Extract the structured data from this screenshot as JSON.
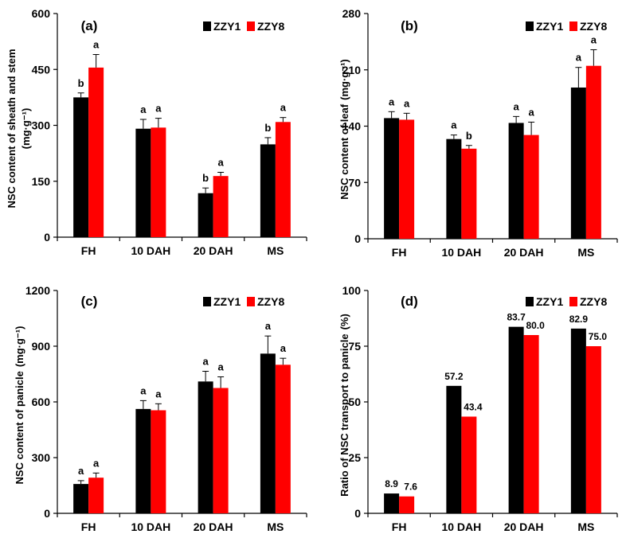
{
  "legend": [
    "ZZY1",
    "ZZY8"
  ],
  "colors": {
    "ZZY1": "#000000",
    "ZZY8": "#ff0000"
  },
  "chart_data": [
    {
      "panel": "(a)",
      "type": "bar",
      "categories": [
        "FH",
        "10 DAH",
        "20 DAH",
        "MS"
      ],
      "ylabel": "NSC content of sheath and stem",
      "ylabel_unit": "(mg·g⁻¹)",
      "ylim": [
        0,
        600
      ],
      "yticks": [
        0,
        150,
        300,
        450,
        600
      ],
      "legend_placement": "top-right",
      "grid": false,
      "series": [
        {
          "name": "ZZY1",
          "values": [
            375,
            291,
            118,
            249
          ],
          "errors": [
            12,
            25,
            14,
            18
          ],
          "labels": [
            "b",
            "a",
            "b",
            "b"
          ]
        },
        {
          "name": "ZZY8",
          "values": [
            455,
            294,
            164,
            309
          ],
          "errors": [
            35,
            25,
            10,
            12
          ],
          "labels": [
            "a",
            "a",
            "a",
            "a"
          ]
        }
      ]
    },
    {
      "panel": "(b)",
      "type": "bar",
      "categories": [
        "FH",
        "10 DAH",
        "20 DAH",
        "MS"
      ],
      "ylabel": "NSC content of leaf",
      "ylabel_unit": "(mg·g⁻¹)",
      "ylim": [
        0,
        280
      ],
      "yticks": [
        0,
        70,
        140,
        210,
        280
      ],
      "legend_placement": "top-right",
      "grid": false,
      "series": [
        {
          "name": "ZZY1",
          "values": [
            150,
            124,
            144,
            188
          ],
          "errors": [
            8,
            5,
            8,
            25
          ],
          "labels": [
            "a",
            "a",
            "a",
            "a"
          ]
        },
        {
          "name": "ZZY8",
          "values": [
            148,
            112,
            129,
            215
          ],
          "errors": [
            8,
            4,
            16,
            20
          ],
          "labels": [
            "a",
            "b",
            "a",
            "a"
          ]
        }
      ]
    },
    {
      "panel": "(c)",
      "type": "bar",
      "categories": [
        "FH",
        "10 DAH",
        "20 DAH",
        "MS"
      ],
      "ylabel": "NSC content of panicle",
      "ylabel_unit": "(mg·g⁻¹)",
      "ylim": [
        0,
        1200
      ],
      "yticks": [
        0,
        300,
        600,
        900,
        1200
      ],
      "legend_placement": "top-right",
      "grid": false,
      "series": [
        {
          "name": "ZZY1",
          "values": [
            158,
            562,
            710,
            860
          ],
          "errors": [
            18,
            45,
            55,
            95
          ],
          "labels": [
            "a",
            "a",
            "a",
            "a"
          ]
        },
        {
          "name": "ZZY8",
          "values": [
            192,
            555,
            675,
            800
          ],
          "errors": [
            25,
            35,
            60,
            35
          ],
          "labels": [
            "a",
            "a",
            "a",
            "a"
          ]
        }
      ]
    },
    {
      "panel": "(d)",
      "type": "bar",
      "categories": [
        "FH",
        "10 DAH",
        "20 DAH",
        "MS"
      ],
      "ylabel": "Ratio of NSC transport to panicle",
      "ylabel_unit": "(%)",
      "ylim": [
        0,
        100
      ],
      "yticks": [
        0,
        25,
        50,
        75,
        100
      ],
      "legend_placement": "top-right",
      "grid": false,
      "series": [
        {
          "name": "ZZY1",
          "values": [
            8.9,
            57.2,
            83.7,
            82.9
          ],
          "labels": [
            "8.9",
            "57.2",
            "83.7",
            "82.9"
          ]
        },
        {
          "name": "ZZY8",
          "values": [
            7.6,
            43.4,
            80.0,
            75.0
          ],
          "labels": [
            "7.6",
            "43.4",
            "80.0",
            "75.0"
          ]
        }
      ]
    }
  ]
}
